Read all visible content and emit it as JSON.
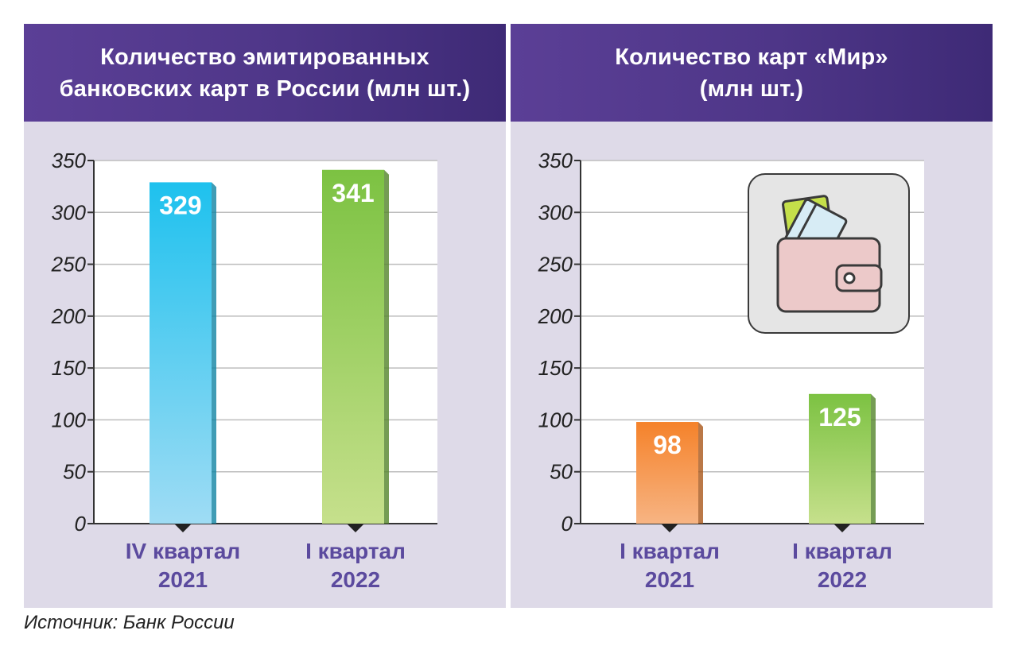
{
  "chart_data": [
    {
      "type": "bar",
      "title_lines": [
        "Количество эмитированных",
        "банковских карт в России (млн шт.)"
      ],
      "categories": [
        [
          "IV квартал",
          "2021"
        ],
        [
          "I квартал",
          "2022"
        ]
      ],
      "values": [
        329,
        341
      ],
      "data_labels": [
        "329",
        "341"
      ],
      "colors": [
        [
          "#1ec1ee",
          "#9fdcf4"
        ],
        [
          "#7cc242",
          "#c6e08c"
        ]
      ],
      "y_ticks": [
        "0",
        "50",
        "100",
        "150",
        "200",
        "250",
        "300",
        "350"
      ],
      "ylim": [
        0,
        350
      ],
      "grid": true
    },
    {
      "type": "bar",
      "title_lines": [
        "Количество карт «Мир»",
        "(млн шт.)"
      ],
      "categories": [
        [
          "I квартал",
          "2021"
        ],
        [
          "I квартал",
          "2022"
        ]
      ],
      "values": [
        98,
        125
      ],
      "data_labels": [
        "98",
        "125"
      ],
      "colors": [
        [
          "#f5822a",
          "#f7b483"
        ],
        [
          "#7cc242",
          "#c6e08c"
        ]
      ],
      "y_ticks": [
        "0",
        "50",
        "100",
        "150",
        "200",
        "250",
        "300",
        "350"
      ],
      "ylim": [
        0,
        350
      ],
      "grid": true
    }
  ],
  "source": "Источник: Банк России",
  "icon": "wallet-with-cards-icon",
  "theme": {
    "header": "#4e3688",
    "panel_bg": "#dedae8",
    "category_text": "#5b4a9e"
  }
}
